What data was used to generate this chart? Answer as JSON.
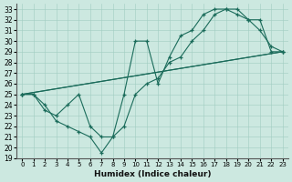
{
  "xlabel": "Humidex (Indice chaleur)",
  "ylabel": "",
  "bg_color": "#cce8e0",
  "line_color": "#1a6b5a",
  "xlim": [
    -0.5,
    23.5
  ],
  "ylim": [
    19,
    33.5
  ],
  "xticks": [
    0,
    1,
    2,
    3,
    4,
    5,
    6,
    7,
    8,
    9,
    10,
    11,
    12,
    13,
    14,
    15,
    16,
    17,
    18,
    19,
    20,
    21,
    22,
    23
  ],
  "yticks": [
    19,
    20,
    21,
    22,
    23,
    24,
    25,
    26,
    27,
    28,
    29,
    30,
    31,
    32,
    33
  ],
  "series": [
    {
      "x": [
        0,
        1,
        2,
        3,
        4,
        5,
        6,
        7,
        8,
        9,
        10,
        11,
        12,
        13,
        14,
        15,
        16,
        17,
        18,
        19,
        20,
        21,
        22,
        23
      ],
      "y": [
        25,
        25,
        23.5,
        23,
        24,
        25,
        22,
        21,
        21,
        25,
        30,
        30,
        26,
        28.5,
        30.5,
        31,
        32.5,
        33,
        33,
        32.5,
        32,
        31,
        29.5,
        29
      ]
    },
    {
      "x": [
        0,
        1,
        2,
        3,
        4,
        5,
        6,
        7,
        8,
        9,
        10,
        11,
        12,
        13,
        14,
        15,
        16,
        17,
        18,
        19,
        20,
        21,
        22,
        23
      ],
      "y": [
        25,
        25,
        24,
        22.5,
        22,
        21.5,
        21,
        19.5,
        21,
        22,
        25,
        26,
        26.5,
        28,
        28.5,
        30,
        31,
        32.5,
        33,
        33,
        32,
        32,
        29,
        29
      ]
    },
    {
      "x": [
        0,
        23
      ],
      "y": [
        25,
        29
      ]
    }
  ]
}
